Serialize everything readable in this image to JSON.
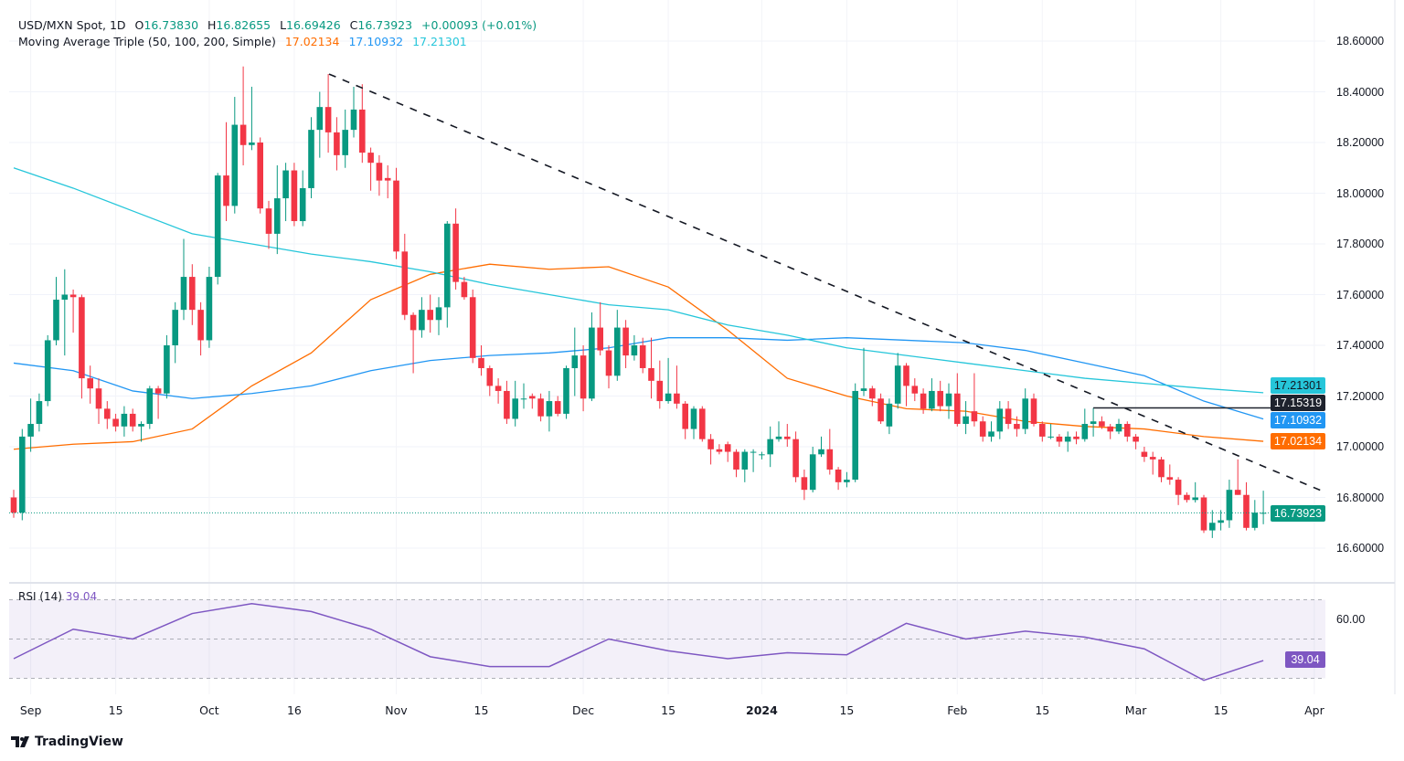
{
  "header": {
    "symbol": "USD/MXN Spot, 1D",
    "open_label": "O",
    "open": "16.73830",
    "high_label": "H",
    "high": "16.82655",
    "low_label": "L",
    "low": "16.69426",
    "close_label": "C",
    "close": "16.73923",
    "change": "+0.00093 (+0.01%)"
  },
  "ma_legend": {
    "title": "Moving Average Triple (50, 100, 200, Simple)",
    "ma50": "17.02134",
    "ma100": "17.10932",
    "ma200": "17.21301"
  },
  "rsi_legend": {
    "title": "RSI (14)",
    "value": "39.04"
  },
  "badges": {
    "ma200": "17.21301",
    "hline": "17.15319",
    "ma100": "17.10932",
    "ma50": "17.02134",
    "last": "16.73923",
    "rsi": "39.04"
  },
  "colors": {
    "up": "#089981",
    "down": "#f23645",
    "ma50": "#ff6d00",
    "ma100": "#2196f3",
    "ma200": "#26c6da",
    "hline": "#1e222d",
    "rsi": "#7e57c2"
  },
  "logo": "TradingView",
  "chart_data": {
    "type": "candlestick",
    "title": "USD/MXN Spot, 1D",
    "price_ticks": [
      "18.60000",
      "18.40000",
      "18.20000",
      "18.00000",
      "17.80000",
      "17.60000",
      "17.40000",
      "17.20000",
      "17.00000",
      "16.80000",
      "16.60000"
    ],
    "rsi_ticks": [
      "60.00"
    ],
    "x_ticks": [
      "Sep",
      "15",
      "Oct",
      "16",
      "Nov",
      "15",
      "Dec",
      "15",
      "2024",
      "15",
      "Feb",
      "15",
      "Mar",
      "15",
      "Apr"
    ],
    "ylim": [
      16.5,
      18.65
    ],
    "grid": true,
    "horizontal_line": 17.15319,
    "trendline": "descending dashed",
    "ohlc": [
      [
        16.8,
        16.83,
        16.72,
        16.74
      ],
      [
        16.74,
        17.07,
        16.71,
        17.04
      ],
      [
        17.04,
        17.19,
        16.98,
        17.09
      ],
      [
        17.09,
        17.21,
        17.06,
        17.18
      ],
      [
        17.18,
        17.44,
        17.16,
        17.42
      ],
      [
        17.42,
        17.67,
        17.4,
        17.58
      ],
      [
        17.58,
        17.7,
        17.36,
        17.6
      ],
      [
        17.6,
        17.62,
        17.45,
        17.59
      ],
      [
        17.59,
        17.6,
        17.19,
        17.27
      ],
      [
        17.27,
        17.32,
        17.17,
        17.23
      ],
      [
        17.23,
        17.27,
        17.09,
        17.15
      ],
      [
        17.15,
        17.18,
        17.07,
        17.11
      ],
      [
        17.11,
        17.13,
        17.06,
        17.08
      ],
      [
        17.08,
        17.16,
        17.04,
        17.13
      ],
      [
        17.13,
        17.15,
        17.06,
        17.08
      ],
      [
        17.08,
        17.1,
        17.02,
        17.09
      ],
      [
        17.09,
        17.24,
        17.07,
        17.23
      ],
      [
        17.23,
        17.24,
        17.11,
        17.21
      ],
      [
        17.21,
        17.44,
        17.19,
        17.4
      ],
      [
        17.4,
        17.57,
        17.33,
        17.54
      ],
      [
        17.54,
        17.82,
        17.5,
        17.67
      ],
      [
        17.67,
        17.72,
        17.48,
        17.54
      ],
      [
        17.54,
        17.57,
        17.36,
        17.42
      ],
      [
        17.42,
        17.71,
        17.39,
        17.67
      ],
      [
        17.67,
        18.08,
        17.64,
        18.07
      ],
      [
        18.07,
        18.28,
        17.89,
        17.95
      ],
      [
        17.95,
        18.38,
        17.92,
        18.27
      ],
      [
        18.27,
        18.5,
        18.11,
        18.19
      ],
      [
        18.19,
        18.42,
        18.17,
        18.2
      ],
      [
        18.2,
        18.22,
        17.92,
        17.94
      ],
      [
        17.94,
        17.97,
        17.78,
        17.84
      ],
      [
        17.84,
        18.11,
        17.76,
        17.98
      ],
      [
        17.98,
        18.12,
        17.89,
        18.09
      ],
      [
        18.09,
        18.12,
        17.87,
        17.89
      ],
      [
        17.89,
        18.09,
        17.87,
        18.02
      ],
      [
        18.02,
        18.3,
        17.98,
        18.25
      ],
      [
        18.25,
        18.4,
        18.14,
        18.34
      ],
      [
        18.34,
        18.47,
        18.16,
        18.24
      ],
      [
        18.24,
        18.3,
        18.09,
        18.15
      ],
      [
        18.15,
        18.33,
        18.1,
        18.25
      ],
      [
        18.25,
        18.42,
        18.22,
        18.33
      ],
      [
        18.33,
        18.43,
        18.12,
        18.16
      ],
      [
        18.16,
        18.18,
        18.01,
        18.12
      ],
      [
        18.12,
        18.15,
        17.99,
        18.05
      ],
      [
        18.06,
        18.11,
        17.98,
        18.05
      ],
      [
        18.05,
        18.1,
        17.74,
        17.77
      ],
      [
        17.77,
        17.84,
        17.5,
        17.52
      ],
      [
        17.52,
        17.53,
        17.29,
        17.46
      ],
      [
        17.46,
        17.59,
        17.43,
        17.54
      ],
      [
        17.54,
        17.6,
        17.45,
        17.5
      ],
      [
        17.5,
        17.59,
        17.44,
        17.55
      ],
      [
        17.55,
        17.89,
        17.47,
        17.88
      ],
      [
        17.88,
        17.94,
        17.62,
        17.65
      ],
      [
        17.65,
        17.67,
        17.58,
        17.59
      ],
      [
        17.59,
        17.62,
        17.33,
        17.35
      ],
      [
        17.35,
        17.4,
        17.28,
        17.31
      ],
      [
        17.31,
        17.32,
        17.2,
        17.24
      ],
      [
        17.24,
        17.27,
        17.17,
        17.22
      ],
      [
        17.22,
        17.26,
        17.09,
        17.11
      ],
      [
        17.11,
        17.26,
        17.08,
        17.19
      ],
      [
        17.19,
        17.25,
        17.15,
        17.19
      ],
      [
        17.2,
        17.21,
        17.15,
        17.19
      ],
      [
        17.19,
        17.21,
        17.1,
        17.12
      ],
      [
        17.12,
        17.22,
        17.06,
        17.18
      ],
      [
        17.18,
        17.2,
        17.12,
        17.13
      ],
      [
        17.13,
        17.32,
        17.11,
        17.31
      ],
      [
        17.31,
        17.47,
        17.2,
        17.36
      ],
      [
        17.36,
        17.4,
        17.14,
        17.19
      ],
      [
        17.19,
        17.53,
        17.18,
        17.47
      ],
      [
        17.47,
        17.57,
        17.36,
        17.38
      ],
      [
        17.38,
        17.4,
        17.23,
        17.28
      ],
      [
        17.28,
        17.54,
        17.26,
        17.47
      ],
      [
        17.47,
        17.5,
        17.31,
        17.36
      ],
      [
        17.36,
        17.44,
        17.34,
        17.4
      ],
      [
        17.4,
        17.43,
        17.29,
        17.31
      ],
      [
        17.31,
        17.43,
        17.19,
        17.26
      ],
      [
        17.26,
        17.34,
        17.15,
        17.18
      ],
      [
        17.18,
        17.35,
        17.17,
        17.21
      ],
      [
        17.21,
        17.32,
        17.15,
        17.17
      ],
      [
        17.17,
        17.18,
        17.03,
        17.07
      ],
      [
        17.07,
        17.16,
        17.03,
        17.15
      ],
      [
        17.15,
        17.16,
        17.02,
        17.03
      ],
      [
        17.03,
        17.05,
        16.93,
        16.99
      ],
      [
        16.99,
        17.01,
        16.97,
        16.98
      ],
      [
        17.01,
        17.02,
        16.94,
        16.98
      ],
      [
        16.98,
        16.99,
        16.88,
        16.91
      ],
      [
        16.91,
        16.99,
        16.86,
        16.98
      ],
      [
        16.98,
        16.99,
        16.9,
        16.98
      ],
      [
        16.97,
        16.98,
        16.95,
        16.97
      ],
      [
        16.97,
        17.08,
        16.92,
        17.03
      ],
      [
        17.03,
        17.1,
        17.02,
        17.04
      ],
      [
        17.04,
        17.09,
        17.0,
        17.03
      ],
      [
        17.03,
        17.06,
        16.86,
        16.88
      ],
      [
        16.88,
        16.91,
        16.79,
        16.83
      ],
      [
        16.83,
        17.0,
        16.82,
        16.97
      ],
      [
        16.97,
        17.04,
        16.96,
        16.99
      ],
      [
        16.99,
        17.07,
        16.89,
        16.91
      ],
      [
        16.91,
        16.92,
        16.83,
        16.86
      ],
      [
        16.86,
        16.9,
        16.84,
        16.87
      ],
      [
        16.87,
        17.25,
        16.86,
        17.22
      ],
      [
        17.22,
        17.39,
        17.2,
        17.23
      ],
      [
        17.23,
        17.24,
        17.16,
        17.19
      ],
      [
        17.19,
        17.21,
        17.09,
        17.1
      ],
      [
        17.08,
        17.19,
        17.05,
        17.17
      ],
      [
        17.17,
        17.37,
        17.15,
        17.32
      ],
      [
        17.32,
        17.33,
        17.16,
        17.24
      ],
      [
        17.24,
        17.27,
        17.18,
        17.21
      ],
      [
        17.21,
        17.23,
        17.13,
        17.15
      ],
      [
        17.15,
        17.27,
        17.14,
        17.22
      ],
      [
        17.22,
        17.26,
        17.14,
        17.16
      ],
      [
        17.16,
        17.25,
        17.11,
        17.21
      ],
      [
        17.21,
        17.29,
        17.08,
        17.09
      ],
      [
        17.09,
        17.18,
        17.05,
        17.12
      ],
      [
        17.14,
        17.29,
        17.08,
        17.1
      ],
      [
        17.1,
        17.12,
        17.02,
        17.04
      ],
      [
        17.04,
        17.1,
        17.02,
        17.06
      ],
      [
        17.06,
        17.18,
        17.03,
        17.15
      ],
      [
        17.15,
        17.18,
        17.07,
        17.09
      ],
      [
        17.09,
        17.12,
        17.04,
        17.07
      ],
      [
        17.07,
        17.23,
        17.05,
        17.19
      ],
      [
        17.19,
        17.21,
        17.08,
        17.09
      ],
      [
        17.09,
        17.1,
        17.02,
        17.04
      ],
      [
        17.04,
        17.09,
        17.03,
        17.04
      ],
      [
        17.04,
        17.05,
        17.0,
        17.02
      ],
      [
        17.02,
        17.06,
        16.98,
        17.04
      ],
      [
        17.04,
        17.06,
        17.01,
        17.03
      ],
      [
        17.03,
        17.15,
        17.02,
        17.09
      ],
      [
        17.09,
        17.153,
        17.04,
        17.1
      ],
      [
        17.1,
        17.12,
        17.07,
        17.08
      ],
      [
        17.08,
        17.09,
        17.03,
        17.06
      ],
      [
        17.06,
        17.11,
        17.05,
        17.09
      ],
      [
        17.09,
        17.1,
        17.02,
        17.04
      ],
      [
        17.04,
        17.05,
        16.99,
        17.02
      ],
      [
        16.98,
        17.0,
        16.94,
        16.96
      ],
      [
        16.96,
        16.98,
        16.89,
        16.95
      ],
      [
        16.95,
        16.96,
        16.86,
        16.88
      ],
      [
        16.88,
        16.93,
        16.85,
        16.87
      ],
      [
        16.87,
        16.88,
        16.77,
        16.81
      ],
      [
        16.81,
        16.82,
        16.78,
        16.79
      ],
      [
        16.79,
        16.86,
        16.78,
        16.8
      ],
      [
        16.8,
        16.81,
        16.66,
        16.67
      ],
      [
        16.67,
        16.75,
        16.64,
        16.7
      ],
      [
        16.7,
        16.75,
        16.67,
        16.71
      ],
      [
        16.71,
        16.87,
        16.68,
        16.83
      ],
      [
        16.83,
        16.95,
        16.81,
        16.81
      ],
      [
        16.81,
        16.86,
        16.67,
        16.68
      ],
      [
        16.68,
        16.79,
        16.67,
        16.74
      ],
      [
        16.7383,
        16.82655,
        16.69426,
        16.73923
      ]
    ],
    "series": [
      {
        "name": "MA 50",
        "values": [
          16.99,
          17.01,
          17.02,
          17.07,
          17.24,
          17.37,
          17.58,
          17.68,
          17.72,
          17.7,
          17.71,
          17.63,
          17.46,
          17.27,
          17.2,
          17.15,
          17.14,
          17.1,
          17.08,
          17.07,
          17.04,
          17.02134
        ]
      },
      {
        "name": "MA 100",
        "values": [
          17.33,
          17.3,
          17.22,
          17.19,
          17.21,
          17.24,
          17.3,
          17.34,
          17.36,
          17.37,
          17.39,
          17.43,
          17.43,
          17.42,
          17.43,
          17.42,
          17.41,
          17.38,
          17.33,
          17.28,
          17.18,
          17.10932
        ]
      },
      {
        "name": "MA 200",
        "values": [
          18.1,
          18.02,
          17.93,
          17.84,
          17.8,
          17.76,
          17.73,
          17.69,
          17.64,
          17.6,
          17.56,
          17.54,
          17.48,
          17.44,
          17.39,
          17.36,
          17.33,
          17.3,
          17.27,
          17.25,
          17.23,
          17.21301
        ]
      },
      {
        "name": "RSI (14)",
        "values": [
          40,
          55,
          50,
          63,
          68,
          64,
          55,
          41,
          36,
          36,
          50,
          44,
          40,
          43,
          42,
          58,
          50,
          54,
          51,
          45,
          29,
          39.04
        ]
      }
    ]
  }
}
